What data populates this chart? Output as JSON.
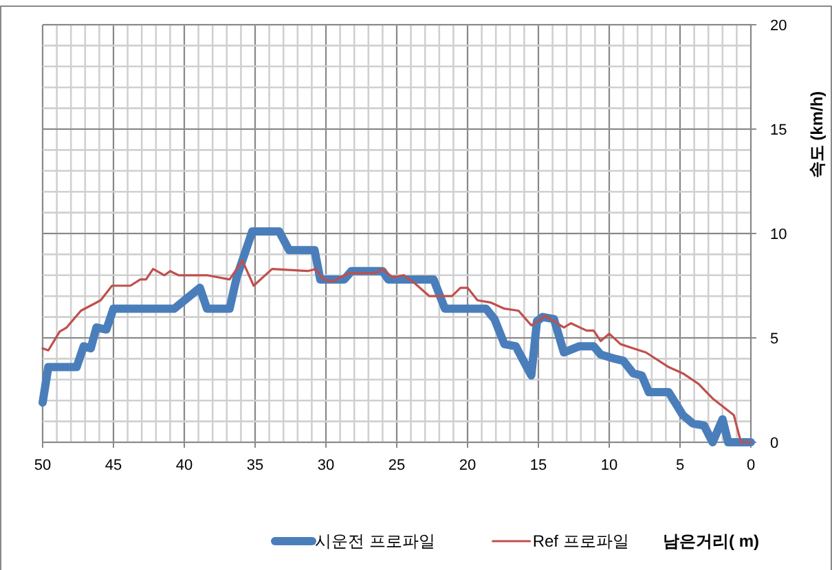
{
  "chart_data": {
    "type": "line",
    "xlabel": "남은거리( m)",
    "ylabel": "속도 (km/h)",
    "xlim": [
      50,
      0
    ],
    "xticks": [
      50,
      45,
      40,
      35,
      30,
      25,
      20,
      15,
      10,
      5,
      0
    ],
    "ylim": [
      0,
      20
    ],
    "yticks": [
      0,
      5,
      10,
      15,
      20
    ],
    "grid": true,
    "legend": "bottom",
    "marker": "none",
    "line_style": "solid",
    "series": [
      {
        "name": "시운전 프로파일",
        "color": "#4a7ebb",
        "x": [
          50,
          49.6,
          47.6,
          47.1,
          46.6,
          46.2,
          45.5,
          45.0,
          40.7,
          38.9,
          38.4,
          36.8,
          36.3,
          35.2,
          33.3,
          32.6,
          30.8,
          30.4,
          28.7,
          28.2,
          26.0,
          25.6,
          22.4,
          21.6,
          18.7,
          18.1,
          17.4,
          16.6,
          15.5,
          15.1,
          14.7,
          13.9,
          13.2,
          12.1,
          11.1,
          10.6,
          9.6,
          9.0,
          8.3,
          7.7,
          7.2,
          5.8,
          4.8,
          4.1,
          3.3,
          2.7,
          2.0,
          1.6,
          0
        ],
        "values": [
          1.9,
          3.6,
          3.6,
          4.6,
          4.5,
          5.5,
          5.4,
          6.4,
          6.4,
          7.4,
          6.4,
          6.4,
          7.9,
          10.1,
          10.1,
          9.2,
          9.2,
          7.8,
          7.8,
          8.2,
          8.2,
          7.8,
          7.8,
          6.4,
          6.4,
          5.9,
          4.7,
          4.6,
          3.2,
          5.8,
          6.0,
          5.9,
          4.3,
          4.6,
          4.6,
          4.2,
          4.0,
          3.9,
          3.3,
          3.2,
          2.4,
          2.4,
          1.3,
          0.9,
          0.8,
          0,
          1.1,
          0,
          0
        ]
      },
      {
        "name": "Ref 프로파일",
        "color": "#c0504d",
        "x": [
          50,
          49.6,
          48.8,
          48.3,
          47.3,
          45.9,
          45.1,
          43.8,
          43.1,
          42.7,
          42.2,
          41.4,
          41.0,
          40.4,
          38.4,
          36.8,
          35.9,
          35.1,
          33.8,
          31.3,
          30.7,
          30.2,
          29.5,
          28.4,
          26.5,
          26.0,
          25.3,
          24.5,
          23.7,
          22.7,
          22.1,
          21.1,
          20.5,
          20.0,
          19.3,
          18.4,
          17.4,
          16.4,
          15.5,
          14.5,
          13.2,
          12.7,
          11.6,
          11.1,
          10.6,
          10.0,
          9.2,
          8.3,
          7.4,
          5.8,
          4.8,
          3.7,
          2.7,
          1.2,
          0.7,
          0
        ],
        "values": [
          4.5,
          4.4,
          5.3,
          5.5,
          6.3,
          6.8,
          7.5,
          7.5,
          7.8,
          7.8,
          8.3,
          8.0,
          8.2,
          8.0,
          8.0,
          7.8,
          8.7,
          7.5,
          8.3,
          8.2,
          8.3,
          7.8,
          7.7,
          8.1,
          8.1,
          8.3,
          7.9,
          8.0,
          7.6,
          7.0,
          7.0,
          7.0,
          7.4,
          7.4,
          6.8,
          6.7,
          6.4,
          6.3,
          5.6,
          6.05,
          5.5,
          5.7,
          5.35,
          5.35,
          4.85,
          5.2,
          4.7,
          4.5,
          4.3,
          3.6,
          3.3,
          2.8,
          2.1,
          1.3,
          0,
          0
        ]
      }
    ]
  }
}
